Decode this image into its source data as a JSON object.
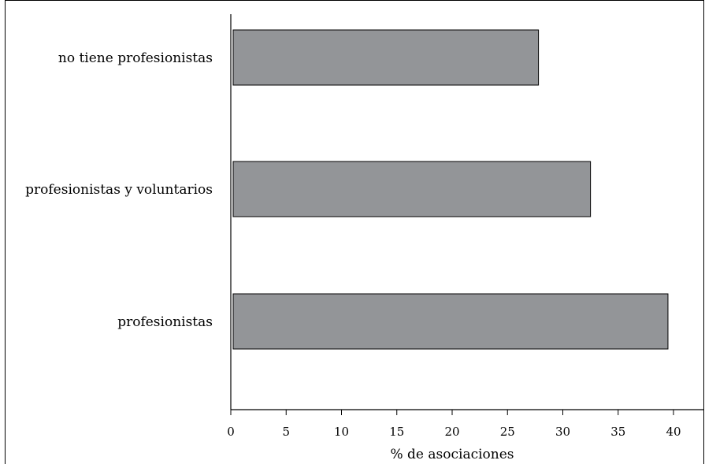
{
  "chart_data": {
    "type": "bar",
    "orientation": "horizontal",
    "categories": [
      "no tiene profesionistas",
      "profesionistas y voluntarios",
      "profesionistas"
    ],
    "values": [
      27.8,
      32.5,
      39.5
    ],
    "xlabel": "% de asociaciones",
    "ylabel": "",
    "xlim": [
      0,
      40
    ],
    "xticks": [
      "0",
      "5",
      "10",
      "15",
      "20",
      "25",
      "30",
      "35",
      "40"
    ],
    "grid": false,
    "bar_color": "#939598"
  }
}
